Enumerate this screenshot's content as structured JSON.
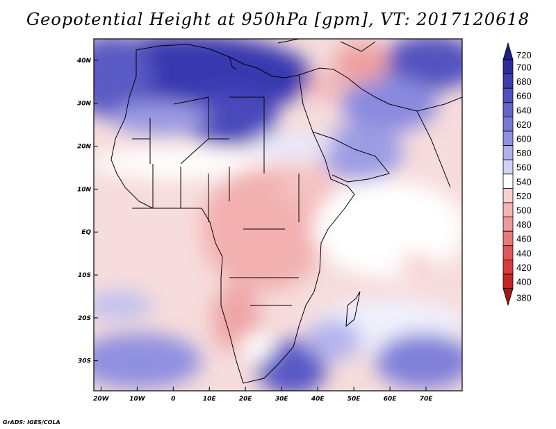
{
  "title": "Geopotential Height at 950hPa [gpm], VT: 2017120618",
  "credit": "GrADS: IGES/COLA",
  "map": {
    "lon_range": [
      -22,
      80
    ],
    "lat_range": [
      -37,
      45
    ],
    "lat_ticks": [
      {
        "value": 40,
        "label": "40N"
      },
      {
        "value": 30,
        "label": "30N"
      },
      {
        "value": 20,
        "label": "20N"
      },
      {
        "value": 10,
        "label": "10N"
      },
      {
        "value": 0,
        "label": "EQ"
      },
      {
        "value": -10,
        "label": "10S"
      },
      {
        "value": -20,
        "label": "20S"
      },
      {
        "value": -30,
        "label": "30S"
      }
    ],
    "lon_ticks": [
      {
        "value": -20,
        "label": "20W"
      },
      {
        "value": -10,
        "label": "10W"
      },
      {
        "value": 0,
        "label": "0"
      },
      {
        "value": 10,
        "label": "10E"
      },
      {
        "value": 20,
        "label": "20E"
      },
      {
        "value": 30,
        "label": "30E"
      },
      {
        "value": 40,
        "label": "40E"
      },
      {
        "value": 50,
        "label": "50E"
      },
      {
        "value": 60,
        "label": "60E"
      },
      {
        "value": 70,
        "label": "70E"
      }
    ]
  },
  "colorbar": {
    "levels": [
      "720",
      "700",
      "680",
      "660",
      "640",
      "620",
      "600",
      "580",
      "560",
      "540",
      "520",
      "500",
      "480",
      "460",
      "440",
      "420",
      "400",
      "380"
    ],
    "colors": [
      "#1e1e8c",
      "#2b2b9e",
      "#3c3cb0",
      "#5050c0",
      "#6464cc",
      "#7878d6",
      "#9090e0",
      "#b0b0ec",
      "#d2d2f6",
      "#ffffff",
      "#f8d0d0",
      "#f4b4b4",
      "#ee9898",
      "#e87a7a",
      "#e05858",
      "#d63c3c",
      "#c42424",
      "#a81414"
    ]
  }
}
